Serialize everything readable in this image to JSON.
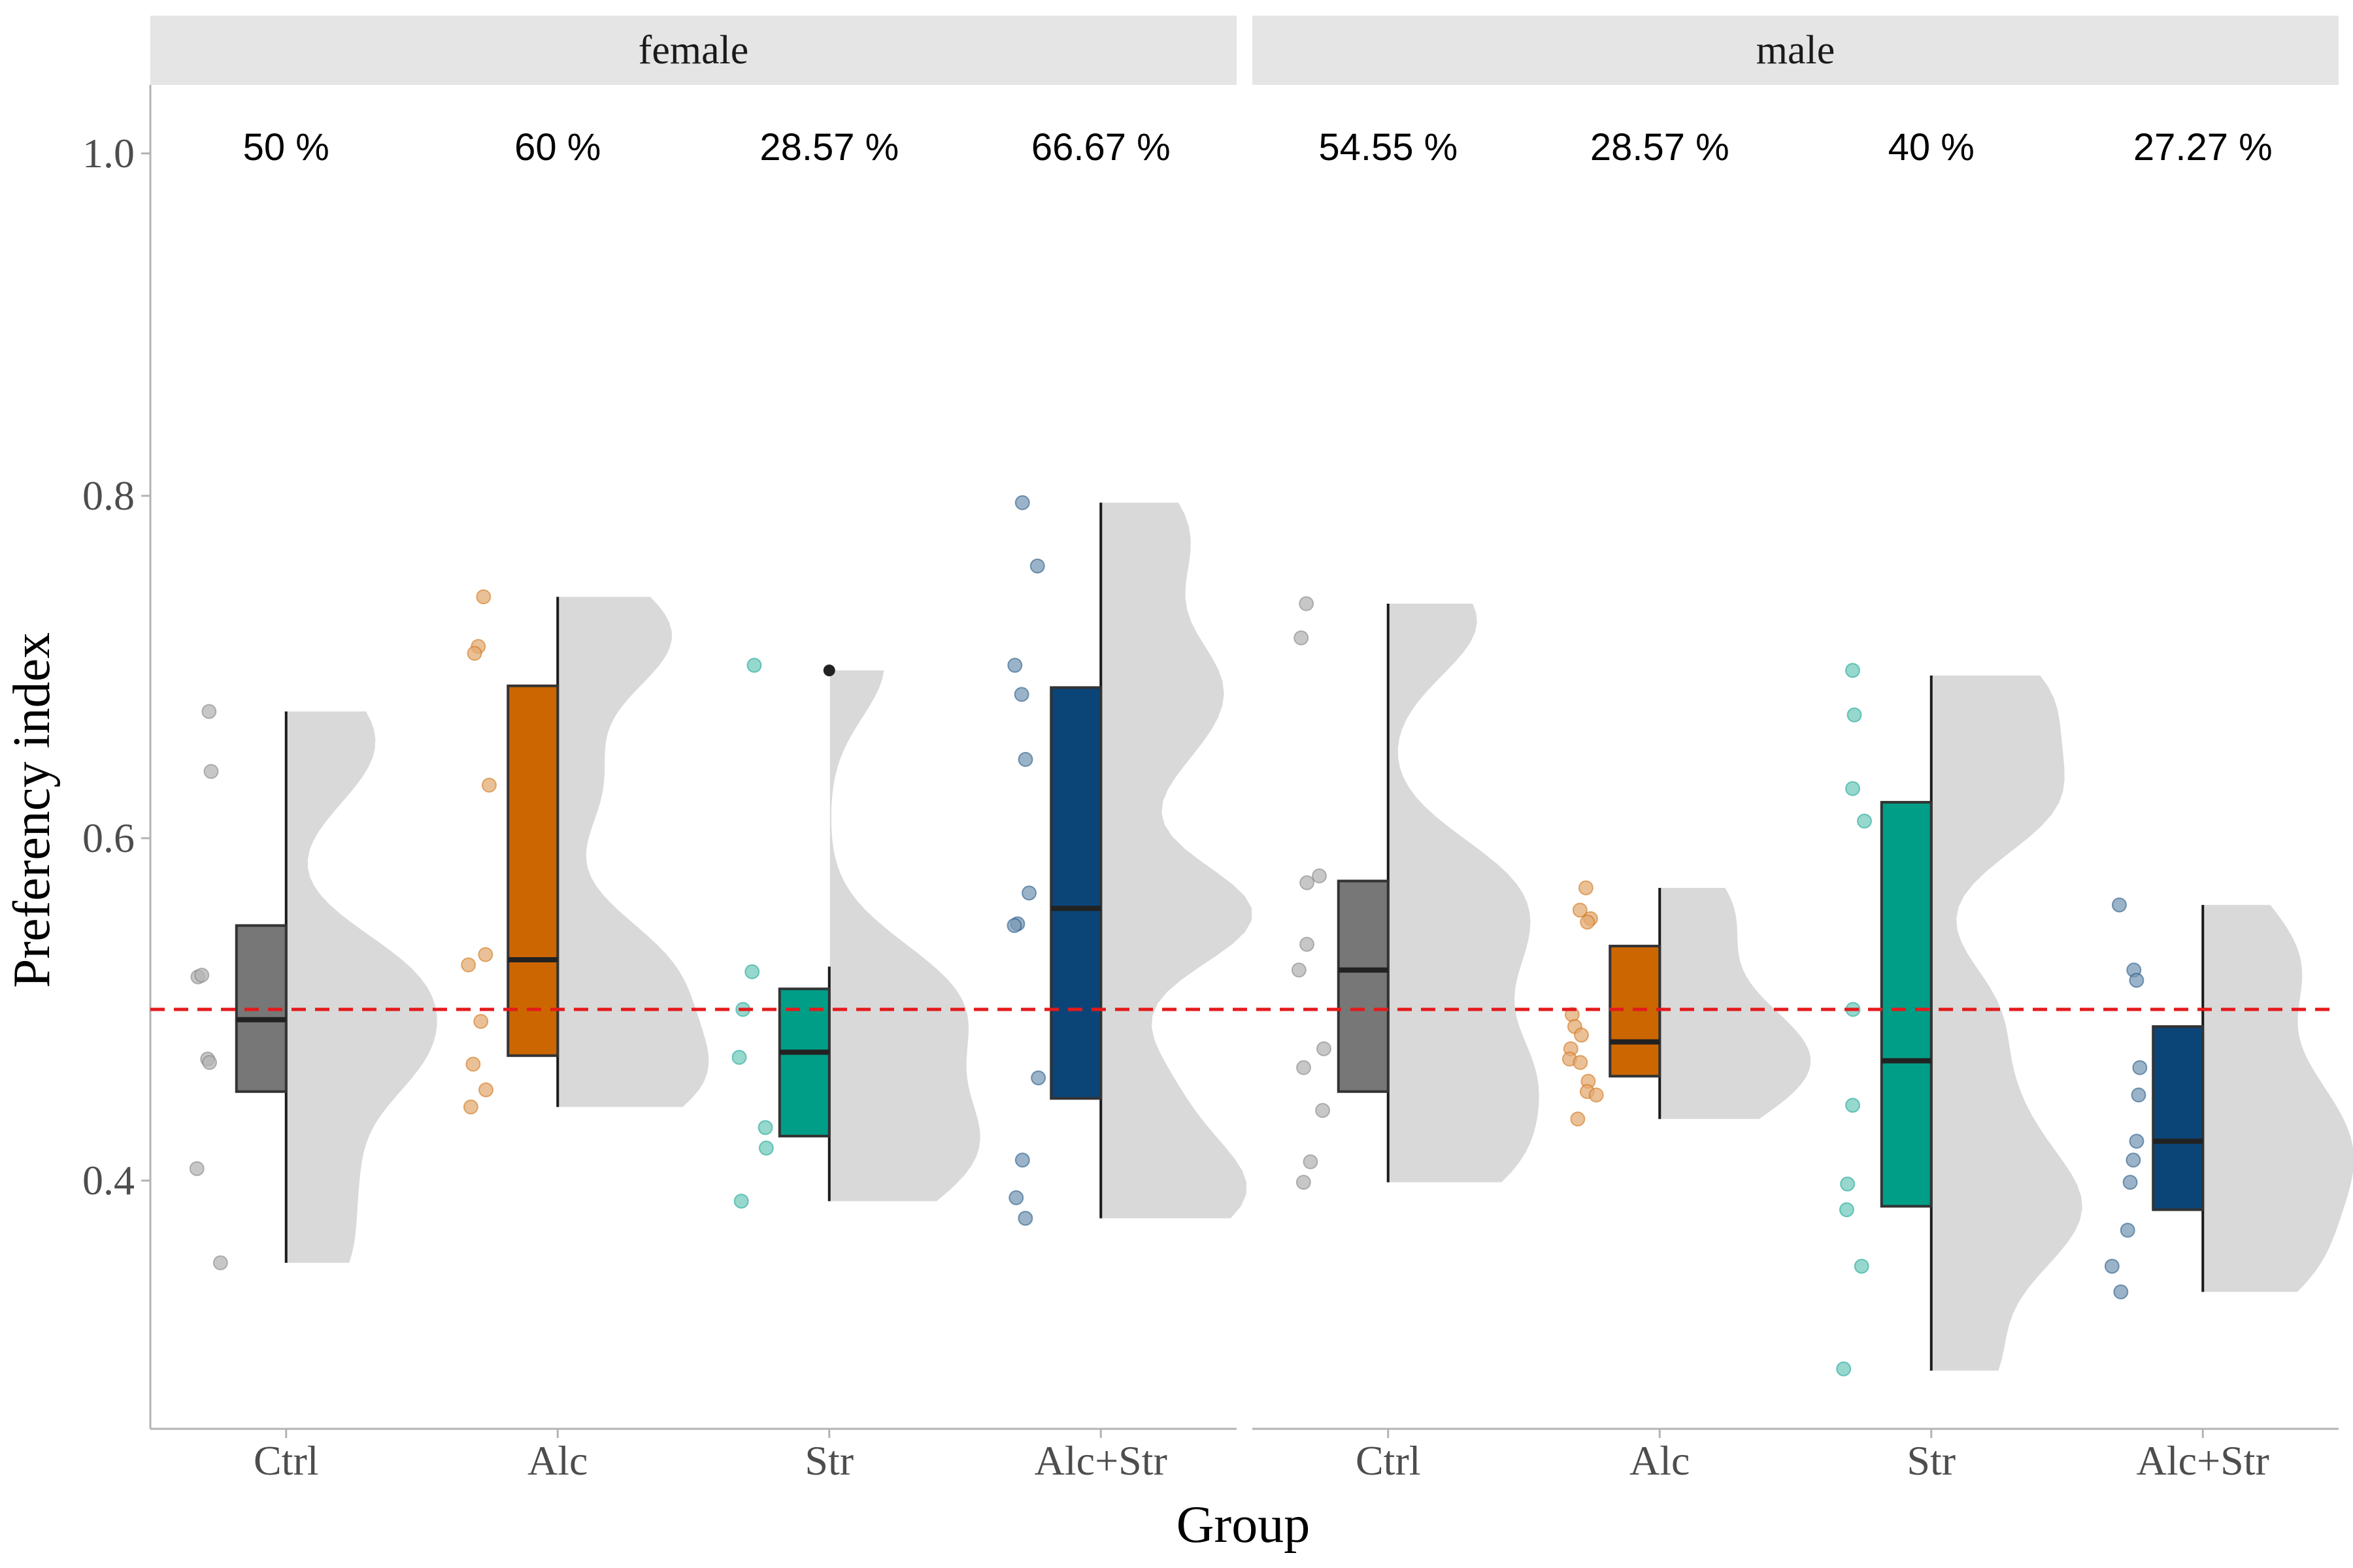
{
  "chart_data": {
    "type": "raincloud",
    "xlabel": "Group",
    "ylabel": "Preferency index",
    "y_ticks": [
      0.4,
      0.6,
      0.8,
      1.0
    ],
    "y_tick_labels": [
      "0.4",
      "0.6",
      "0.8",
      "1.0"
    ],
    "ylim": [
      0.255,
      1.04
    ],
    "reference_line": {
      "y": 0.5,
      "style": "dashed",
      "color": "#e41a1c"
    },
    "categories": [
      "Ctrl",
      "Alc",
      "Str",
      "Alc+Str"
    ],
    "colors": {
      "Ctrl": "#777777",
      "Alc": "#cc6600",
      "Str": "#009e87",
      "Alc+Str": "#0b4578"
    },
    "facets": [
      {
        "name": "female",
        "groups": [
          {
            "label": "Ctrl",
            "percent": "50 %",
            "box": {
              "lower_whisker": 0.352,
              "q1": 0.452,
              "median": 0.494,
              "q3": 0.549,
              "upper_whisker": 0.674
            },
            "outliers": [],
            "points": [
              0.674,
              0.639,
              0.519,
              0.52,
              0.471,
              0.469,
              0.407,
              0.352
            ]
          },
          {
            "label": "Alc",
            "percent": "60 %",
            "box": {
              "lower_whisker": 0.443,
              "q1": 0.473,
              "median": 0.529,
              "q3": 0.689,
              "upper_whisker": 0.741
            },
            "outliers": [],
            "points": [
              0.741,
              0.712,
              0.708,
              0.631,
              0.532,
              0.526,
              0.493,
              0.468,
              0.453,
              0.443
            ]
          },
          {
            "label": "Str",
            "percent": "28.57 %",
            "box": {
              "lower_whisker": 0.388,
              "q1": 0.426,
              "median": 0.475,
              "q3": 0.512,
              "upper_whisker": 0.525
            },
            "outliers": [
              0.698
            ],
            "points": [
              0.701,
              0.522,
              0.5,
              0.472,
              0.431,
              0.419,
              0.388
            ]
          },
          {
            "label": "Alc+Str",
            "percent": "66.67 %",
            "box": {
              "lower_whisker": 0.378,
              "q1": 0.448,
              "median": 0.559,
              "q3": 0.688,
              "upper_whisker": 0.796
            },
            "outliers": [],
            "points": [
              0.796,
              0.759,
              0.701,
              0.684,
              0.646,
              0.568,
              0.55,
              0.549,
              0.46,
              0.412,
              0.39,
              0.378
            ]
          }
        ]
      },
      {
        "name": "male",
        "groups": [
          {
            "label": "Ctrl",
            "percent": "54.55 %",
            "box": {
              "lower_whisker": 0.399,
              "q1": 0.452,
              "median": 0.523,
              "q3": 0.575,
              "upper_whisker": 0.737
            },
            "outliers": [],
            "points": [
              0.737,
              0.717,
              0.578,
              0.574,
              0.538,
              0.523,
              0.477,
              0.466,
              0.441,
              0.411,
              0.399
            ]
          },
          {
            "label": "Alc",
            "percent": "28.57 %",
            "box": {
              "lower_whisker": 0.436,
              "q1": 0.461,
              "median": 0.481,
              "q3": 0.537,
              "upper_whisker": 0.571
            },
            "outliers": [],
            "points": [
              0.571,
              0.558,
              0.553,
              0.551,
              0.497,
              0.49,
              0.485,
              0.477,
              0.471,
              0.469,
              0.458,
              0.452,
              0.45,
              0.436
            ]
          },
          {
            "label": "Str",
            "percent": "40 %",
            "box": {
              "lower_whisker": 0.289,
              "q1": 0.385,
              "median": 0.47,
              "q3": 0.621,
              "upper_whisker": 0.695
            },
            "outliers": [],
            "points": [
              0.698,
              0.672,
              0.629,
              0.61,
              0.5,
              0.444,
              0.398,
              0.383,
              0.35,
              0.29
            ]
          },
          {
            "label": "Alc+Str",
            "percent": "27.27 %",
            "box": {
              "lower_whisker": 0.335,
              "q1": 0.383,
              "median": 0.423,
              "q3": 0.49,
              "upper_whisker": 0.561
            },
            "outliers": [],
            "points": [
              0.561,
              0.523,
              0.517,
              0.466,
              0.45,
              0.423,
              0.412,
              0.399,
              0.371,
              0.35,
              0.335
            ]
          }
        ]
      }
    ]
  }
}
